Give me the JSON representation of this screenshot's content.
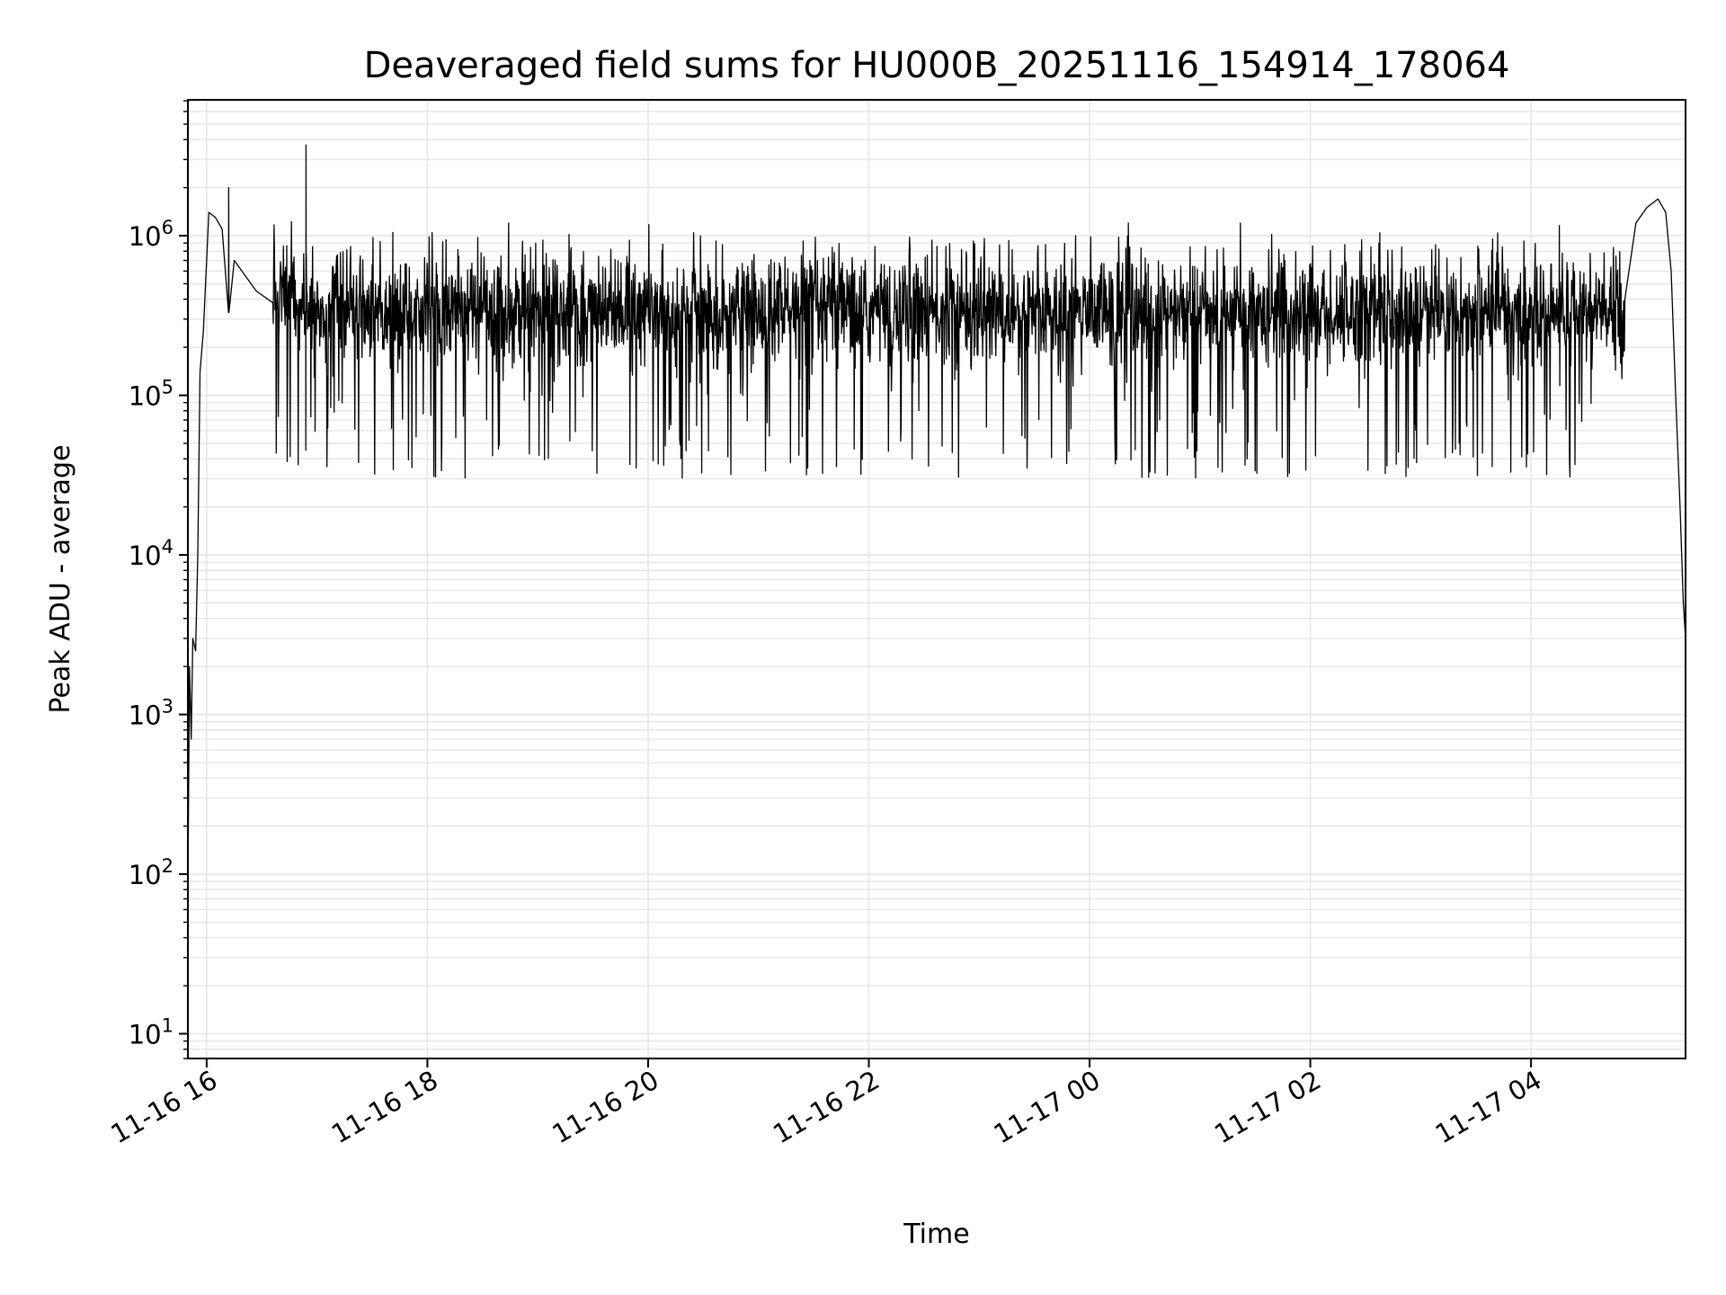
{
  "chart_data": {
    "type": "line",
    "title": "Deaveraged field sums for HU000B_20251116_154914_178064",
    "xlabel": "Time",
    "ylabel": "Peak ADU - average",
    "yscale": "log",
    "ylim": [
      7,
      7100000
    ],
    "xlim_hours_from_11_16_00": [
      15.83,
      29.4
    ],
    "grid": "on (major x, major+minor y)",
    "line_color": "#000000",
    "grid_color": "#e6e6e6",
    "x_ticks": [
      {
        "hours": 16,
        "label": "11-16 16"
      },
      {
        "hours": 18,
        "label": "11-16 18"
      },
      {
        "hours": 20,
        "label": "11-16 20"
      },
      {
        "hours": 22,
        "label": "11-16 22"
      },
      {
        "hours": 24,
        "label": "11-17 00"
      },
      {
        "hours": 26,
        "label": "11-17 02"
      },
      {
        "hours": 28,
        "label": "11-17 04"
      }
    ],
    "y_ticks": [
      {
        "exp": 1,
        "base": "10",
        "sup": "1"
      },
      {
        "exp": 2,
        "base": "10",
        "sup": "2"
      },
      {
        "exp": 3,
        "base": "10",
        "sup": "3"
      },
      {
        "exp": 4,
        "base": "10",
        "sup": "4"
      },
      {
        "exp": 5,
        "base": "10",
        "sup": "5"
      },
      {
        "exp": 6,
        "base": "10",
        "sup": "6"
      }
    ],
    "key_points": [
      [
        15.83,
        80
      ],
      [
        15.845,
        2000
      ],
      [
        15.86,
        700
      ],
      [
        15.875,
        3000
      ],
      [
        15.9,
        2500
      ],
      [
        15.92,
        10000
      ],
      [
        15.94,
        140000
      ],
      [
        15.97,
        250000
      ],
      [
        16.02,
        1400000
      ],
      [
        16.08,
        1300000
      ],
      [
        16.14,
        1100000
      ],
      [
        16.25,
        700000
      ],
      [
        16.45,
        450000
      ],
      [
        16.6,
        380000
      ]
    ],
    "spikes": [
      [
        16.9,
        3700000
      ],
      [
        16.2,
        2000000
      ]
    ],
    "baseline": {
      "start": 16.6,
      "end": 28.85,
      "median": 330000,
      "typical_max": 1000000,
      "typical_min": 30000,
      "noise_seed": 17
    },
    "end_points": [
      [
        28.85,
        400000
      ],
      [
        28.95,
        1200000
      ],
      [
        29.05,
        1500000
      ],
      [
        29.15,
        1700000
      ],
      [
        29.22,
        1400000
      ],
      [
        29.27,
        600000
      ],
      [
        29.31,
        100000
      ],
      [
        29.35,
        20000
      ],
      [
        29.38,
        5000
      ],
      [
        29.4,
        3000
      ]
    ]
  }
}
